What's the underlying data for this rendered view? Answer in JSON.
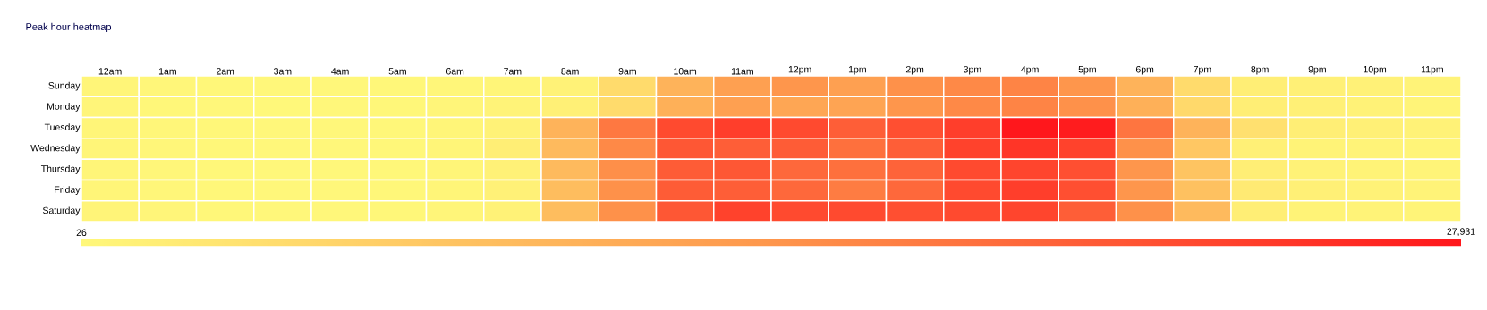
{
  "chart_data": {
    "type": "heatmap",
    "title": "Peak hour heatmap",
    "categories": [
      "12am",
      "1am",
      "2am",
      "3am",
      "4am",
      "5am",
      "6am",
      "7am",
      "8am",
      "9am",
      "10am",
      "11am",
      "12pm",
      "1pm",
      "2pm",
      "3pm",
      "4pm",
      "5pm",
      "6pm",
      "7pm",
      "8pm",
      "9pm",
      "10pm",
      "11pm"
    ],
    "y_categories": [
      "Sunday",
      "Monday",
      "Tuesday",
      "Wednesday",
      "Thursday",
      "Friday",
      "Saturday"
    ],
    "cells": [
      [
        500,
        300,
        200,
        100,
        100,
        200,
        300,
        500,
        900,
        4200,
        9800,
        12500,
        14000,
        12500,
        14500,
        15400,
        16000,
        14000,
        9800,
        4200,
        1500,
        1200,
        1000,
        700
      ],
      [
        400,
        200,
        100,
        26,
        100,
        200,
        400,
        700,
        1200,
        4200,
        10300,
        12500,
        11700,
        12000,
        14000,
        15400,
        16000,
        14500,
        10300,
        4500,
        1500,
        1100,
        900,
        600
      ],
      [
        500,
        300,
        200,
        100,
        100,
        200,
        500,
        900,
        9800,
        17300,
        22300,
        23700,
        22300,
        20100,
        21800,
        23700,
        27931,
        27400,
        17600,
        9800,
        3400,
        1400,
        1200,
        900
      ],
      [
        500,
        300,
        200,
        100,
        100,
        200,
        500,
        1400,
        8900,
        15400,
        20900,
        20100,
        20400,
        18200,
        20100,
        23200,
        24600,
        23200,
        14500,
        7000,
        1100,
        800,
        700,
        600
      ],
      [
        500,
        300,
        200,
        100,
        100,
        200,
        500,
        1000,
        8900,
        14800,
        20400,
        20900,
        19000,
        18200,
        19600,
        22300,
        22900,
        21800,
        14000,
        7500,
        1400,
        900,
        800,
        600
      ],
      [
        500,
        300,
        200,
        100,
        100,
        200,
        500,
        1000,
        8400,
        14500,
        20400,
        20100,
        19000,
        16800,
        19000,
        22300,
        23700,
        21800,
        14000,
        7800,
        2000,
        1100,
        900,
        700
      ],
      [
        600,
        400,
        200,
        100,
        100,
        200,
        400,
        900,
        8400,
        14500,
        20900,
        23200,
        22300,
        22300,
        21800,
        22300,
        22900,
        20100,
        14500,
        8900,
        1400,
        800,
        700,
        600
      ]
    ],
    "clim": [
      26,
      27931
    ],
    "cticks": [
      26,
      {
        "value": 27931,
        "label": "27,931"
      }
    ]
  }
}
